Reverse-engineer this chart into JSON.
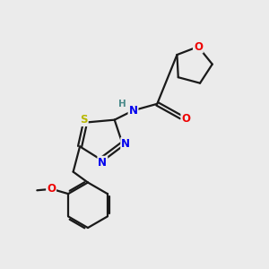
{
  "background_color": "#ebebeb",
  "bond_color": "#1a1a1a",
  "atom_colors": {
    "N": "#0000ee",
    "O": "#ee0000",
    "S": "#b8b800",
    "H": "#4a8a8a",
    "C": "#1a1a1a"
  },
  "figsize": [
    3.0,
    3.0
  ],
  "dpi": 100,
  "lw": 1.6,
  "fs": 8.5
}
